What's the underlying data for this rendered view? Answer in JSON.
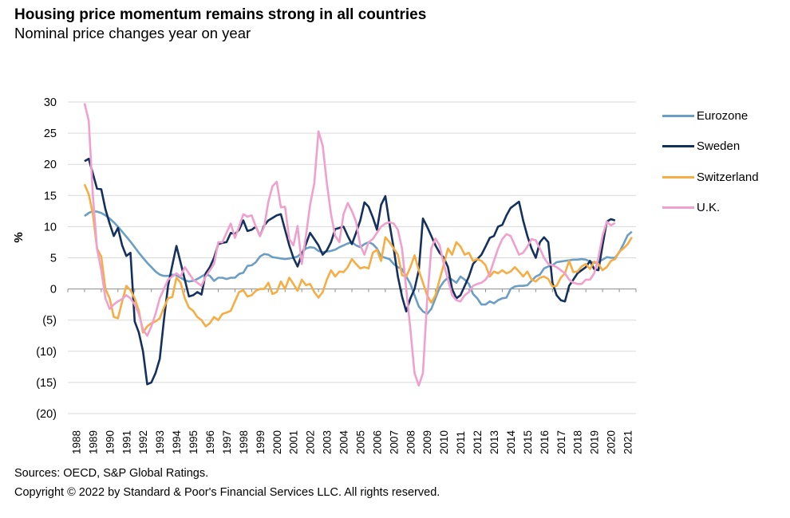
{
  "title": "Housing price momentum remains strong in all countries",
  "subtitle": "Nominal price changes year on year",
  "footer": {
    "sources": "Sources: OECD, S&P Global Ratings.",
    "copyright": "Copyright © 2022 by Standard & Poor's Financial Services LLC. All rights reserved."
  },
  "chart_data": {
    "type": "line",
    "title": "Housing price momentum remains strong in all countries",
    "subtitle": "Nominal price changes year on year",
    "xlabel": "",
    "ylabel": "%",
    "ylim": [
      -20,
      30
    ],
    "xlim": [
      1988,
      2022
    ],
    "grid": true,
    "legend_position": "right",
    "yticks": [
      30,
      25,
      20,
      15,
      10,
      5,
      0,
      -5,
      -10,
      -15,
      -20
    ],
    "ytick_labels": [
      "30",
      "25",
      "20",
      "15",
      "10",
      "5",
      "0",
      "(5)",
      "(10)",
      "(15)",
      "(20)"
    ],
    "xtick_labels": [
      "1988",
      "1989",
      "1990",
      "1991",
      "1992",
      "1993",
      "1994",
      "1995",
      "1996",
      "1997",
      "1998",
      "1999",
      "2000",
      "2001",
      "2002",
      "2003",
      "2004",
      "2005",
      "2006",
      "2007",
      "2008",
      "2009",
      "2010",
      "2011",
      "2012",
      "2013",
      "2014",
      "2015",
      "2016",
      "2017",
      "2018",
      "2019",
      "2020",
      "2021"
    ],
    "x_start": 1989.0,
    "x_step": 0.25,
    "series": [
      {
        "name": "Eurozone",
        "color": "#6a9ec5",
        "values": [
          11.7,
          12.2,
          12.5,
          12.4,
          12.2,
          11.8,
          11.3,
          10.7,
          10.0,
          9.2,
          8.4,
          7.6,
          6.7,
          5.8,
          5.0,
          4.2,
          3.5,
          2.8,
          2.3,
          2.1,
          2.1,
          2.3,
          2.2,
          1.8,
          1.4,
          1.2,
          1.3,
          1.6,
          2.0,
          2.4,
          2.1,
          1.3,
          1.8,
          1.8,
          1.6,
          1.8,
          1.8,
          2.4,
          2.6,
          3.7,
          3.8,
          4.3,
          5.2,
          5.6,
          5.5,
          5.1,
          5.0,
          4.9,
          4.8,
          4.9,
          5.0,
          5.2,
          5.8,
          6.5,
          6.7,
          6.6,
          6.1,
          5.9,
          6.0,
          6.1,
          6.3,
          6.7,
          7.0,
          7.3,
          7.5,
          7.0,
          6.7,
          7.2,
          7.5,
          7.2,
          6.5,
          5.2,
          5.0,
          4.8,
          4.0,
          3.5,
          3.2,
          2.0,
          0.8,
          -1.0,
          -2.8,
          -3.6,
          -4.0,
          -3.2,
          -1.5,
          0.2,
          1.2,
          1.8,
          1.5,
          1.0,
          2.0,
          1.5,
          0.8,
          -0.8,
          -1.5,
          -2.5,
          -2.5,
          -2.0,
          -2.3,
          -1.8,
          -1.5,
          -1.4,
          0.0,
          0.4,
          0.5,
          0.5,
          0.6,
          1.3,
          2.0,
          2.3,
          3.3,
          3.6,
          3.8,
          4.3,
          4.4,
          4.5,
          4.6,
          4.7,
          4.7,
          4.8,
          4.7,
          4.4,
          4.2,
          4.3,
          4.7,
          5.1,
          5.0,
          5.0,
          5.9,
          7.2,
          8.6,
          9.2
        ]
      },
      {
        "name": "Sweden",
        "color": "#14305e",
        "values": [
          20.5,
          20.9,
          18.5,
          16.1,
          16.0,
          12.8,
          10.5,
          8.5,
          9.8,
          7.0,
          5.3,
          5.8,
          -5.2,
          -7.0,
          -10.0,
          -15.3,
          -15.0,
          -13.5,
          -11.2,
          -5.0,
          0.5,
          3.8,
          6.9,
          4.2,
          1.5,
          -1.2,
          -1.0,
          -0.5,
          -0.9,
          2.5,
          3.5,
          5.0,
          7.2,
          7.4,
          7.5,
          9.0,
          8.8,
          9.5,
          11.0,
          9.3,
          9.5,
          10.0,
          8.5,
          10.2,
          11.0,
          11.4,
          11.8,
          12.0,
          9.5,
          7.0,
          5.0,
          3.6,
          5.5,
          7.2,
          9.0,
          8.0,
          7.0,
          5.5,
          6.2,
          7.5,
          9.6,
          9.8,
          10.0,
          8.5,
          7.2,
          9.0,
          11.0,
          13.9,
          13.2,
          11.5,
          9.5,
          13.5,
          14.9,
          10.5,
          6.5,
          2.0,
          -1.2,
          -3.6,
          -1.5,
          0.0,
          3.0,
          11.3,
          10.0,
          8.5,
          7.0,
          5.8,
          5.0,
          3.5,
          0.0,
          -1.5,
          -1.0,
          0.5,
          2.0,
          4.0,
          4.8,
          5.5,
          6.8,
          8.2,
          8.5,
          10.0,
          10.3,
          11.8,
          13.0,
          13.5,
          14.0,
          11.0,
          8.5,
          6.5,
          5.0,
          7.5,
          8.3,
          7.5,
          1.0,
          -1.0,
          -1.8,
          -2.0,
          0.5,
          1.5,
          2.5,
          3.0,
          3.5,
          4.5,
          3.2,
          3.0,
          7.0,
          10.8,
          11.2,
          11.0
        ]
      },
      {
        "name": "Switzerland",
        "color": "#f5ad44",
        "values": [
          16.8,
          15.2,
          12.0,
          6.5,
          5.2,
          0.0,
          -1.5,
          -4.5,
          -4.7,
          -2.0,
          0.5,
          -0.2,
          -1.5,
          -3.5,
          -7.0,
          -6.0,
          -5.5,
          -5.2,
          -4.7,
          -3.0,
          -1.5,
          -1.3,
          1.8,
          1.0,
          -1.5,
          -3.0,
          -3.5,
          -4.5,
          -5.0,
          -6.0,
          -5.5,
          -4.5,
          -5.0,
          -4.0,
          -3.8,
          -3.5,
          -2.0,
          -0.5,
          -0.2,
          -1.2,
          -1.0,
          -0.3,
          0.0,
          0.0,
          1.0,
          -0.8,
          -0.5,
          1.2,
          0.0,
          1.8,
          0.8,
          -0.3,
          1.5,
          0.6,
          0.8,
          -0.5,
          -1.4,
          -0.5,
          1.5,
          3.0,
          2.0,
          2.8,
          2.7,
          3.5,
          4.8,
          4.0,
          3.3,
          3.5,
          3.3,
          5.8,
          6.3,
          4.5,
          8.3,
          7.5,
          6.5,
          5.5,
          2.2,
          2.0,
          3.5,
          5.4,
          3.0,
          1.0,
          -1.0,
          -2.2,
          -1.0,
          1.5,
          4.0,
          6.5,
          5.5,
          7.5,
          6.8,
          5.5,
          5.8,
          4.5,
          4.8,
          4.5,
          3.8,
          2.0,
          2.8,
          2.5,
          3.0,
          2.5,
          2.8,
          3.5,
          2.8,
          2.0,
          2.8,
          1.5,
          1.2,
          1.8,
          2.0,
          1.6,
          0.4,
          0.5,
          1.8,
          2.5,
          4.5,
          2.7,
          2.8,
          3.6,
          4.0,
          3.2,
          4.4,
          4.0,
          3.0,
          3.5,
          4.5,
          4.8,
          6.0,
          6.5,
          7.2,
          8.3
        ]
      },
      {
        "name": "U.K.",
        "color": "#f0a0cc",
        "values": [
          29.8,
          27.0,
          15.0,
          6.5,
          3.0,
          -1.5,
          -3.2,
          -2.5,
          -2.0,
          -1.6,
          -1.0,
          -1.5,
          -2.5,
          -4.0,
          -6.5,
          -7.5,
          -6.0,
          -4.0,
          -1.5,
          0.0,
          1.5,
          2.0,
          2.5,
          2.0,
          3.5,
          2.5,
          1.5,
          1.0,
          0.5,
          2.0,
          3.0,
          4.0,
          7.5,
          7.5,
          9.0,
          10.5,
          8.2,
          10.0,
          12.0,
          11.6,
          11.8,
          10.0,
          8.5,
          10.0,
          14.0,
          16.5,
          17.2,
          13.1,
          13.2,
          8.0,
          7.0,
          10.1,
          4.0,
          8.5,
          13.5,
          17.0,
          25.3,
          23.0,
          17.0,
          12.0,
          8.5,
          7.5,
          12.0,
          13.8,
          12.5,
          10.8,
          7.0,
          5.5,
          7.5,
          8.0,
          9.0,
          10.0,
          10.5,
          10.7,
          10.5,
          9.5,
          6.5,
          0.0,
          -6.5,
          -13.5,
          -15.5,
          -13.5,
          -2.0,
          6.5,
          8.1,
          7.0,
          4.0,
          1.5,
          -1.0,
          -1.8,
          -2.0,
          -1.0,
          -0.5,
          0.5,
          0.8,
          1.0,
          1.5,
          2.5,
          4.5,
          6.5,
          8.0,
          8.8,
          8.5,
          7.0,
          5.5,
          5.8,
          6.8,
          8.0,
          7.8,
          6.5,
          5.0,
          4.0,
          3.8,
          3.5,
          3.0,
          2.5,
          1.5,
          1.0,
          0.8,
          0.8,
          1.5,
          1.5,
          2.5,
          5.0,
          8.5,
          10.8,
          10.2,
          10.6
        ]
      }
    ]
  }
}
